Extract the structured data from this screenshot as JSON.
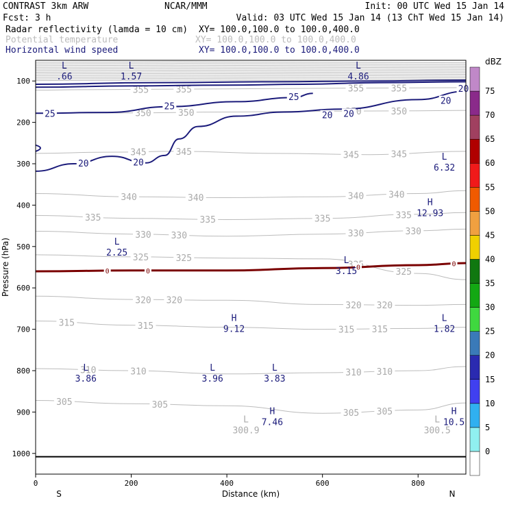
{
  "header": {
    "left1": "CONTRAST  3km ARW",
    "center1": "NCAR/MMM",
    "right1": "Init: 00 UTC Wed 15 Jan 14",
    "left2": "Fcst:     3 h",
    "right2": "Valid: 03 UTC Wed 15 Jan 14 (13 ChT Wed 15 Jan 14)",
    "field1_name": "Radar reflectivity (lamda = 10 cm)",
    "field1_xy": "XY= 100.0,100.0 to 100.0,400.0",
    "field2_name": "Potential temperature",
    "field2_xy": "XY= 100.0,100.0 to 100.0,400.0",
    "field3_name": "Horizontal wind speed",
    "field3_xy": "XY= 100.0,100.0 to 100.0,400.0"
  },
  "colors": {
    "theta": "#bbbbbb",
    "wind": "#1a1a7a",
    "freezing": "#7a0000"
  },
  "chart_data": {
    "type": "cross-section",
    "xlabel": "Distance (km)",
    "ylabel": "Pressure (hPa)",
    "xlim": [
      0,
      900
    ],
    "ylim": [
      1050,
      50
    ],
    "x_ticks": [
      "0",
      "200",
      "400",
      "600",
      "800"
    ],
    "y_ticks": [
      "100",
      "200",
      "300",
      "400",
      "500",
      "600",
      "700",
      "800",
      "900",
      "1000"
    ],
    "x_end_labels": {
      "left": "S",
      "right": "N"
    },
    "surface_pressure": 1008,
    "colorbar": {
      "unit": "dBZ",
      "levels": [
        "0",
        "5",
        "10",
        "15",
        "20",
        "25",
        "30",
        "35",
        "40",
        "45",
        "50",
        "55",
        "60",
        "65",
        "70",
        "75"
      ],
      "colors": [
        "#ffffff",
        "#90f0f0",
        "#30b0f0",
        "#4040f0",
        "#2a2ab0",
        "#3a7ab8",
        "#3fd83f",
        "#13a813",
        "#107810",
        "#f0d000",
        "#f0a040",
        "#f05a00",
        "#f01a1a",
        "#b00000",
        "#a04060",
        "#8a2a8a",
        "#c088c8"
      ]
    },
    "theta_contours": [
      {
        "value": 355,
        "points": [
          [
            0,
            122
          ],
          [
            100,
            121
          ],
          [
            250,
            120
          ],
          [
            400,
            119
          ],
          [
            550,
            118
          ],
          [
            700,
            117
          ],
          [
            900,
            116
          ]
        ],
        "labels": [
          [
            220,
            "355"
          ],
          [
            310,
            "355"
          ],
          [
            670,
            "355"
          ],
          [
            760,
            "355"
          ]
        ]
      },
      {
        "value": 350,
        "points": [
          [
            0,
            178
          ],
          [
            200,
            177
          ],
          [
            400,
            175
          ],
          [
            600,
            173
          ],
          [
            800,
            172
          ],
          [
            900,
            171
          ]
        ],
        "labels": [
          [
            225,
            "350"
          ],
          [
            315,
            "350"
          ],
          [
            665,
            "350"
          ],
          [
            760,
            "350"
          ]
        ]
      },
      {
        "value": 345,
        "points": [
          [
            0,
            275
          ],
          [
            150,
            272
          ],
          [
            300,
            270
          ],
          [
            500,
            275
          ],
          [
            700,
            278
          ],
          [
            900,
            270
          ]
        ],
        "labels": [
          [
            215,
            "345"
          ],
          [
            310,
            "345"
          ],
          [
            660,
            "345"
          ],
          [
            760,
            "345"
          ]
        ]
      },
      {
        "value": 340,
        "points": [
          [
            0,
            372
          ],
          [
            200,
            380
          ],
          [
            400,
            382
          ],
          [
            600,
            380
          ],
          [
            800,
            372
          ],
          [
            900,
            365
          ]
        ],
        "labels": [
          [
            195,
            "340"
          ],
          [
            335,
            "340"
          ],
          [
            670,
            "340"
          ],
          [
            755,
            "340"
          ]
        ]
      },
      {
        "value": 335,
        "points": [
          [
            0,
            425
          ],
          [
            200,
            432
          ],
          [
            400,
            435
          ],
          [
            600,
            432
          ],
          [
            800,
            422
          ],
          [
            900,
            418
          ]
        ],
        "labels": [
          [
            120,
            "335"
          ],
          [
            360,
            "335"
          ],
          [
            600,
            "335"
          ],
          [
            770,
            "335"
          ]
        ]
      },
      {
        "value": 330,
        "points": [
          [
            0,
            463
          ],
          [
            200,
            470
          ],
          [
            400,
            475
          ],
          [
            600,
            470
          ],
          [
            800,
            462
          ],
          [
            900,
            458
          ]
        ],
        "labels": [
          [
            225,
            "330"
          ],
          [
            300,
            "330"
          ],
          [
            670,
            "330"
          ],
          [
            790,
            "330"
          ]
        ]
      },
      {
        "value": 325,
        "points": [
          [
            0,
            520
          ],
          [
            200,
            525
          ],
          [
            400,
            528
          ],
          [
            600,
            530
          ],
          [
            800,
            565
          ],
          [
            900,
            580
          ]
        ],
        "labels": [
          [
            220,
            "325"
          ],
          [
            310,
            "325"
          ],
          [
            670,
            "325"
          ],
          [
            770,
            "325"
          ]
        ]
      },
      {
        "value": 320,
        "points": [
          [
            0,
            620
          ],
          [
            200,
            628
          ],
          [
            400,
            630
          ],
          [
            600,
            640
          ],
          [
            800,
            642
          ],
          [
            900,
            640
          ]
        ],
        "labels": [
          [
            225,
            "320"
          ],
          [
            290,
            "320"
          ],
          [
            665,
            "320"
          ],
          [
            730,
            "320"
          ]
        ]
      },
      {
        "value": 315,
        "points": [
          [
            0,
            680
          ],
          [
            200,
            690
          ],
          [
            400,
            695
          ],
          [
            600,
            700
          ],
          [
            800,
            698
          ],
          [
            900,
            695
          ]
        ],
        "labels": [
          [
            65,
            "315"
          ],
          [
            230,
            "315"
          ],
          [
            650,
            "315"
          ],
          [
            720,
            "315"
          ]
        ]
      },
      {
        "value": 310,
        "points": [
          [
            0,
            795
          ],
          [
            200,
            800
          ],
          [
            400,
            808
          ],
          [
            600,
            805
          ],
          [
            800,
            800
          ],
          [
            900,
            790
          ]
        ],
        "labels": [
          [
            110,
            "310"
          ],
          [
            215,
            "310"
          ],
          [
            665,
            "310"
          ],
          [
            730,
            "310"
          ]
        ]
      },
      {
        "value": 305,
        "points": [
          [
            0,
            872
          ],
          [
            200,
            880
          ],
          [
            400,
            885
          ],
          [
            600,
            903
          ],
          [
            800,
            895
          ],
          [
            900,
            878
          ]
        ],
        "labels": [
          [
            60,
            "305"
          ],
          [
            260,
            "305"
          ],
          [
            660,
            "305"
          ],
          [
            730,
            "305"
          ]
        ]
      }
    ],
    "wind_contours": [
      {
        "value": 20,
        "labels": [
          [
            100,
            "20"
          ],
          [
            215,
            "20"
          ],
          [
            610,
            "20"
          ],
          [
            655,
            "20"
          ],
          [
            858,
            "20"
          ],
          [
            895,
            "20"
          ]
        ]
      },
      {
        "value": 25,
        "labels": [
          [
            30,
            "25"
          ],
          [
            280,
            "25"
          ],
          [
            540,
            "25"
          ]
        ]
      }
    ],
    "freezing_level": {
      "value": 0,
      "points": [
        [
          0,
          560
        ],
        [
          200,
          558
        ],
        [
          400,
          558
        ],
        [
          600,
          552
        ],
        [
          800,
          545
        ],
        [
          900,
          540
        ]
      ],
      "labels": [
        [
          150,
          "0"
        ],
        [
          235,
          "0"
        ],
        [
          675,
          "0"
        ],
        [
          875,
          "0"
        ]
      ]
    },
    "extrema": [
      {
        "kind": "L",
        "value": ".66",
        "x": 60,
        "p": 70,
        "color": "wind"
      },
      {
        "kind": "L",
        "value": "1.57",
        "x": 200,
        "p": 70,
        "color": "wind"
      },
      {
        "kind": "L",
        "value": "4.86",
        "x": 675,
        "p": 70,
        "color": "wind"
      },
      {
        "kind": "L",
        "value": "6.32",
        "x": 855,
        "p": 290,
        "color": "wind"
      },
      {
        "kind": "H",
        "value": "12.93",
        "x": 825,
        "p": 400,
        "color": "wind"
      },
      {
        "kind": "L",
        "value": "2.25",
        "x": 170,
        "p": 495,
        "color": "wind"
      },
      {
        "kind": "L",
        "value": "3.15",
        "x": 650,
        "p": 540,
        "color": "wind"
      },
      {
        "kind": "H",
        "value": "9.12",
        "x": 415,
        "p": 680,
        "color": "wind"
      },
      {
        "kind": "L",
        "value": "1.82",
        "x": 855,
        "p": 680,
        "color": "wind"
      },
      {
        "kind": "L",
        "value": "3.86",
        "x": 105,
        "p": 800,
        "color": "wind"
      },
      {
        "kind": "L",
        "value": "3.96",
        "x": 370,
        "p": 800,
        "color": "wind"
      },
      {
        "kind": "L",
        "value": "3.83",
        "x": 500,
        "p": 800,
        "color": "wind"
      },
      {
        "kind": "H",
        "value": "7.46",
        "x": 495,
        "p": 905,
        "color": "wind"
      },
      {
        "kind": "L",
        "value": "300.9",
        "x": 440,
        "p": 925,
        "color": "theta"
      },
      {
        "kind": "H",
        "value": "10.5",
        "x": 875,
        "p": 905,
        "color": "wind"
      },
      {
        "kind": "L",
        "value": "300.5",
        "x": 840,
        "p": 925,
        "color": "theta"
      }
    ]
  }
}
